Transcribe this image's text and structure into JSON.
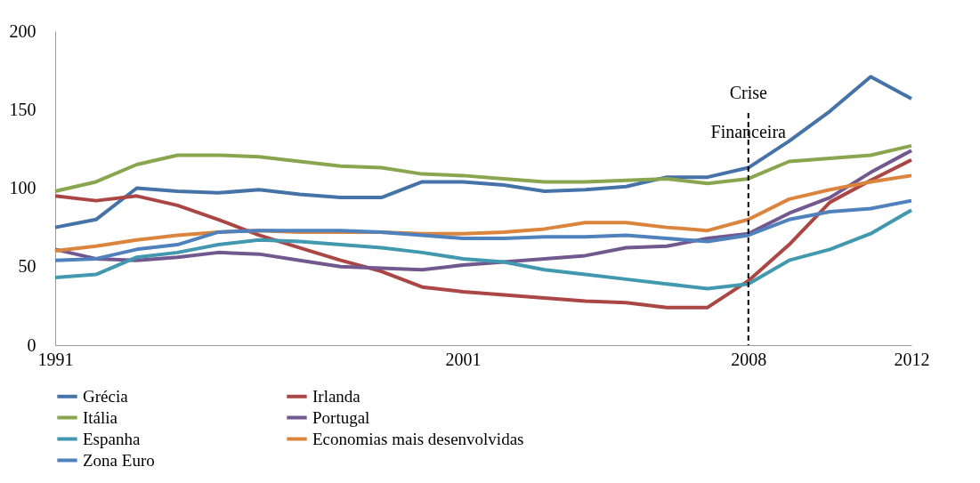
{
  "chart_data": {
    "type": "line",
    "x": [
      1991,
      1992,
      1993,
      1994,
      1995,
      1996,
      1997,
      1998,
      1999,
      2000,
      2001,
      2002,
      2003,
      2004,
      2005,
      2006,
      2007,
      2008,
      2009,
      2010,
      2011,
      2012
    ],
    "xlim": [
      1991,
      2012
    ],
    "xticks": [
      1991,
      2001,
      2008,
      2012
    ],
    "ylim": [
      0,
      200
    ],
    "yticks": [
      0,
      50,
      100,
      150,
      200
    ],
    "grid": false,
    "legend": "bottom",
    "marker": "none",
    "line_style": "solid",
    "ref_lines": [
      {
        "axis": "x",
        "value": 2008,
        "label": "Crise Financeira",
        "line_style": "dashed",
        "color": "#000000"
      }
    ],
    "series": [
      {
        "name": "Grécia",
        "color": "#4572a7",
        "values": [
          75,
          80,
          100,
          98,
          97,
          99,
          96,
          94,
          94,
          104,
          104,
          102,
          98,
          99,
          101,
          107,
          107,
          113,
          130,
          149,
          171,
          157
        ]
      },
      {
        "name": "Irlanda",
        "color": "#aa4643",
        "values": [
          95,
          92,
          95,
          89,
          80,
          70,
          62,
          54,
          47,
          37,
          34,
          32,
          30,
          28,
          27,
          24,
          24,
          41,
          64,
          91,
          105,
          118
        ]
      },
      {
        "name": "Itália",
        "color": "#89a54e",
        "values": [
          98,
          104,
          115,
          121,
          121,
          120,
          117,
          114,
          113,
          109,
          108,
          106,
          104,
          104,
          105,
          106,
          103,
          106,
          117,
          119,
          121,
          127
        ]
      },
      {
        "name": "Portugal",
        "color": "#71588f",
        "values": [
          61,
          55,
          54,
          56,
          59,
          58,
          54,
          50,
          49,
          48,
          51,
          53,
          55,
          57,
          62,
          63,
          68,
          71,
          84,
          94,
          110,
          124
        ]
      },
      {
        "name": "Espanha",
        "color": "#4198af",
        "values": [
          43,
          45,
          56,
          59,
          64,
          67,
          66,
          64,
          62,
          59,
          55,
          53,
          48,
          45,
          42,
          39,
          36,
          39,
          54,
          61,
          71,
          86
        ]
      },
      {
        "name": "Economias mais desenvolvidas",
        "color": "#db843d",
        "values": [
          60,
          63,
          67,
          70,
          72,
          73,
          72,
          72,
          72,
          71,
          71,
          72,
          74,
          78,
          78,
          75,
          73,
          80,
          93,
          99,
          104,
          108
        ]
      },
      {
        "name": "Zona Euro",
        "color": "#4f81bd",
        "values": [
          54,
          55,
          61,
          64,
          72,
          73,
          73,
          73,
          72,
          70,
          68,
          68,
          69,
          69,
          70,
          68,
          66,
          70,
          80,
          85,
          87,
          92
        ]
      }
    ]
  }
}
